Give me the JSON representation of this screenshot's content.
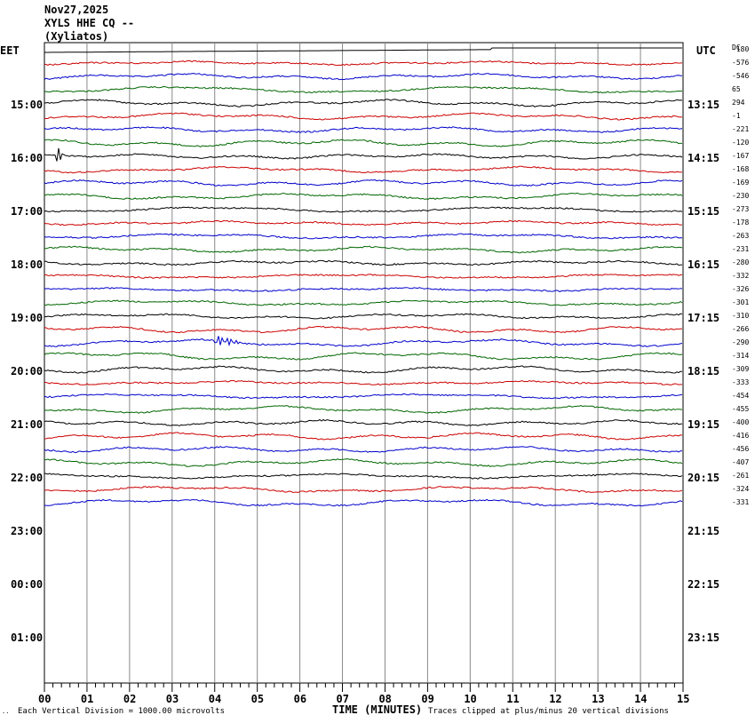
{
  "header": {
    "date": "Nov27,2025",
    "station": "XYLS HHE CQ --",
    "site": "(Xyliatos)"
  },
  "left_axis_title": "EET",
  "right_axis_title": "UTC",
  "dc_title": "DC",
  "footer": {
    "corner_mark": "..",
    "scale_note": "Each Vertical Division = 1000.00 microvolts",
    "xlabel": "TIME (MINUTES)",
    "clip_note": "Traces clipped at plus/minus 20 vertical divisions"
  },
  "chart_data": {
    "type": "line",
    "title": "XYLS HHE CQ -- (Xyliatos)",
    "xlabel": "TIME (MINUTES)",
    "ylabel": "",
    "x_ticks": [
      "00",
      "01",
      "02",
      "03",
      "04",
      "05",
      "06",
      "07",
      "08",
      "09",
      "10",
      "11",
      "12",
      "13",
      "14",
      "15"
    ],
    "xlim": [
      0,
      15
    ],
    "grid": true,
    "left_time_labels": [
      "15:00",
      "16:00",
      "17:00",
      "18:00",
      "19:00",
      "20:00",
      "21:00",
      "22:00",
      "23:00",
      "00:00",
      "01:00"
    ],
    "right_time_labels": [
      "13:15",
      "14:15",
      "15:15",
      "16:15",
      "17:15",
      "18:15",
      "19:15",
      "20:15",
      "21:15",
      "22:15",
      "23:15"
    ],
    "trace_colors": [
      "#000000",
      "#cc0000",
      "#0000cc",
      "#006600"
    ],
    "dc_offsets": [
      -180,
      -576,
      -546,
      65,
      294,
      -1,
      -221,
      -120,
      -167,
      -168,
      -169,
      -230,
      -273,
      -178,
      -263,
      -231,
      -280,
      -332,
      -326,
      -301,
      -310,
      -266,
      -290,
      -314,
      -309,
      -333,
      -454,
      -455,
      -400,
      -416,
      -456,
      -407,
      -261,
      -324,
      -331
    ],
    "events": [
      {
        "trace": 8,
        "minute": 0.25,
        "label": ""
      },
      {
        "trace": 22,
        "minute": 4.0,
        "label": ""
      }
    ]
  }
}
